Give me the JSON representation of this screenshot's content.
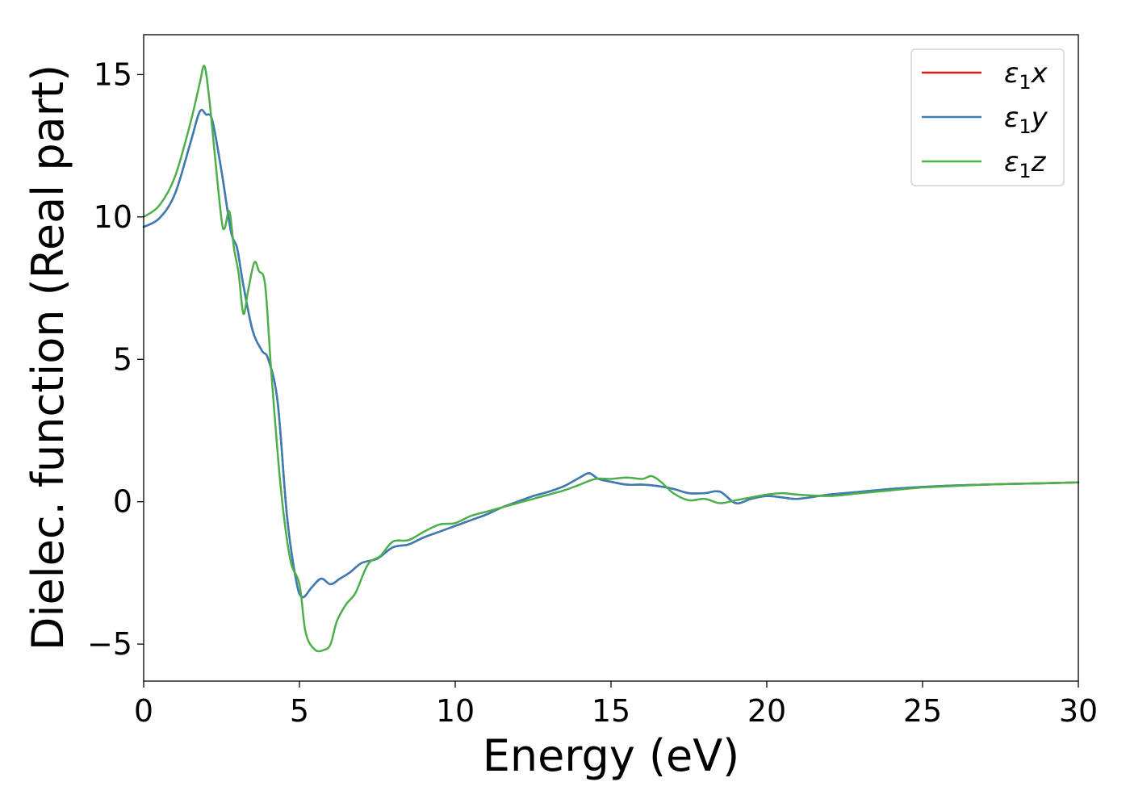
{
  "chart_data": {
    "type": "line",
    "xlabel": "Energy (eV)",
    "ylabel": "Dielec. function (Real part)",
    "xlim": [
      0,
      30
    ],
    "ylim": [
      -6.3,
      16.4
    ],
    "xticks": [
      0,
      5,
      10,
      15,
      20,
      25,
      30
    ],
    "xtick_labels": [
      "0",
      "5",
      "10",
      "15",
      "20",
      "25",
      "30"
    ],
    "yticks": [
      -5,
      0,
      5,
      10,
      15
    ],
    "ytick_labels": [
      "−5",
      "0",
      "5",
      "10",
      "15"
    ],
    "grid": false,
    "legend": {
      "position": "top-right",
      "entries": [
        {
          "base": "ε",
          "sub": "1",
          "axis": "x"
        },
        {
          "base": "ε",
          "sub": "1",
          "axis": "y"
        },
        {
          "base": "ε",
          "sub": "1",
          "axis": "z"
        }
      ]
    },
    "series": [
      {
        "name": "ε1x",
        "color": "#e41a1c",
        "x": [
          0,
          0.5,
          1.0,
          1.5,
          1.8,
          2.0,
          2.2,
          2.5,
          2.8,
          3.0,
          3.2,
          3.5,
          3.8,
          4.0,
          4.3,
          4.6,
          4.9,
          5.1,
          5.4,
          5.7,
          6.0,
          6.3,
          6.6,
          7.0,
          7.5,
          8.0,
          8.5,
          9.0,
          9.5,
          10,
          10.5,
          11,
          11.5,
          12,
          12.5,
          13,
          13.5,
          14,
          14.3,
          14.6,
          15,
          15.5,
          16,
          16.5,
          17,
          17.5,
          18,
          18.5,
          19,
          19.5,
          20,
          20.5,
          21,
          22,
          23,
          24,
          25,
          26,
          27,
          28,
          29,
          30
        ],
        "y": [
          9.65,
          9.95,
          10.8,
          12.6,
          13.7,
          13.6,
          13.4,
          11.6,
          9.5,
          8.9,
          7.6,
          6.0,
          5.3,
          5.0,
          3.5,
          -0.5,
          -2.8,
          -3.35,
          -3.0,
          -2.7,
          -2.9,
          -2.7,
          -2.5,
          -2.15,
          -2.0,
          -1.6,
          -1.5,
          -1.25,
          -1.05,
          -0.85,
          -0.65,
          -0.45,
          -0.2,
          0.0,
          0.2,
          0.35,
          0.55,
          0.85,
          1.0,
          0.8,
          0.7,
          0.6,
          0.6,
          0.55,
          0.45,
          0.3,
          0.3,
          0.35,
          -0.05,
          0.1,
          0.2,
          0.15,
          0.1,
          0.25,
          0.35,
          0.45,
          0.52,
          0.57,
          0.6,
          0.63,
          0.65,
          0.68
        ]
      },
      {
        "name": "ε1y",
        "color": "#377eb8",
        "x": [
          0,
          0.5,
          1.0,
          1.5,
          1.8,
          2.0,
          2.2,
          2.5,
          2.8,
          3.0,
          3.2,
          3.5,
          3.8,
          4.0,
          4.3,
          4.6,
          4.9,
          5.1,
          5.4,
          5.7,
          6.0,
          6.3,
          6.6,
          7.0,
          7.5,
          8.0,
          8.5,
          9.0,
          9.5,
          10,
          10.5,
          11,
          11.5,
          12,
          12.5,
          13,
          13.5,
          14,
          14.3,
          14.6,
          15,
          15.5,
          16,
          16.5,
          17,
          17.5,
          18,
          18.5,
          19,
          19.5,
          20,
          20.5,
          21,
          22,
          23,
          24,
          25,
          26,
          27,
          28,
          29,
          30
        ],
        "y": [
          9.65,
          9.95,
          10.8,
          12.6,
          13.7,
          13.6,
          13.4,
          11.6,
          9.5,
          8.9,
          7.6,
          6.0,
          5.3,
          5.0,
          3.5,
          -0.5,
          -2.8,
          -3.35,
          -3.0,
          -2.7,
          -2.9,
          -2.7,
          -2.5,
          -2.15,
          -2.0,
          -1.6,
          -1.5,
          -1.25,
          -1.05,
          -0.85,
          -0.65,
          -0.45,
          -0.2,
          0.0,
          0.2,
          0.35,
          0.55,
          0.85,
          1.0,
          0.8,
          0.7,
          0.6,
          0.6,
          0.55,
          0.45,
          0.3,
          0.3,
          0.35,
          -0.05,
          0.1,
          0.2,
          0.15,
          0.1,
          0.25,
          0.35,
          0.45,
          0.52,
          0.57,
          0.6,
          0.63,
          0.65,
          0.68
        ]
      },
      {
        "name": "ε1z",
        "color": "#4daf4a",
        "x": [
          0,
          0.5,
          1.0,
          1.5,
          1.8,
          1.95,
          2.1,
          2.3,
          2.5,
          2.6,
          2.75,
          2.9,
          3.05,
          3.2,
          3.35,
          3.55,
          3.7,
          3.9,
          4.1,
          4.4,
          4.7,
          5.0,
          5.2,
          5.5,
          5.8,
          6.0,
          6.2,
          6.5,
          6.8,
          7.2,
          7.6,
          8.0,
          8.5,
          9.0,
          9.5,
          10,
          10.5,
          11,
          11.5,
          12,
          12.5,
          13,
          13.5,
          14,
          14.5,
          15,
          15.5,
          16,
          16.3,
          16.6,
          17,
          17.5,
          18,
          18.5,
          19,
          19.5,
          20,
          20.5,
          21,
          22,
          23,
          24,
          25,
          26,
          27,
          28,
          29,
          30
        ],
        "y": [
          10.0,
          10.4,
          11.4,
          13.3,
          14.7,
          15.3,
          14.2,
          12.0,
          9.9,
          9.6,
          10.2,
          8.9,
          8.0,
          6.6,
          7.4,
          8.4,
          8.1,
          7.6,
          4.5,
          0.5,
          -2.0,
          -2.9,
          -4.6,
          -5.2,
          -5.2,
          -5.0,
          -4.2,
          -3.6,
          -3.2,
          -2.2,
          -1.9,
          -1.4,
          -1.35,
          -1.05,
          -0.8,
          -0.75,
          -0.5,
          -0.35,
          -0.2,
          -0.05,
          0.1,
          0.25,
          0.4,
          0.6,
          0.8,
          0.8,
          0.85,
          0.8,
          0.9,
          0.7,
          0.3,
          0.05,
          0.1,
          -0.05,
          0.05,
          0.15,
          0.25,
          0.3,
          0.25,
          0.2,
          0.3,
          0.4,
          0.5,
          0.55,
          0.6,
          0.63,
          0.65,
          0.68
        ]
      }
    ]
  }
}
